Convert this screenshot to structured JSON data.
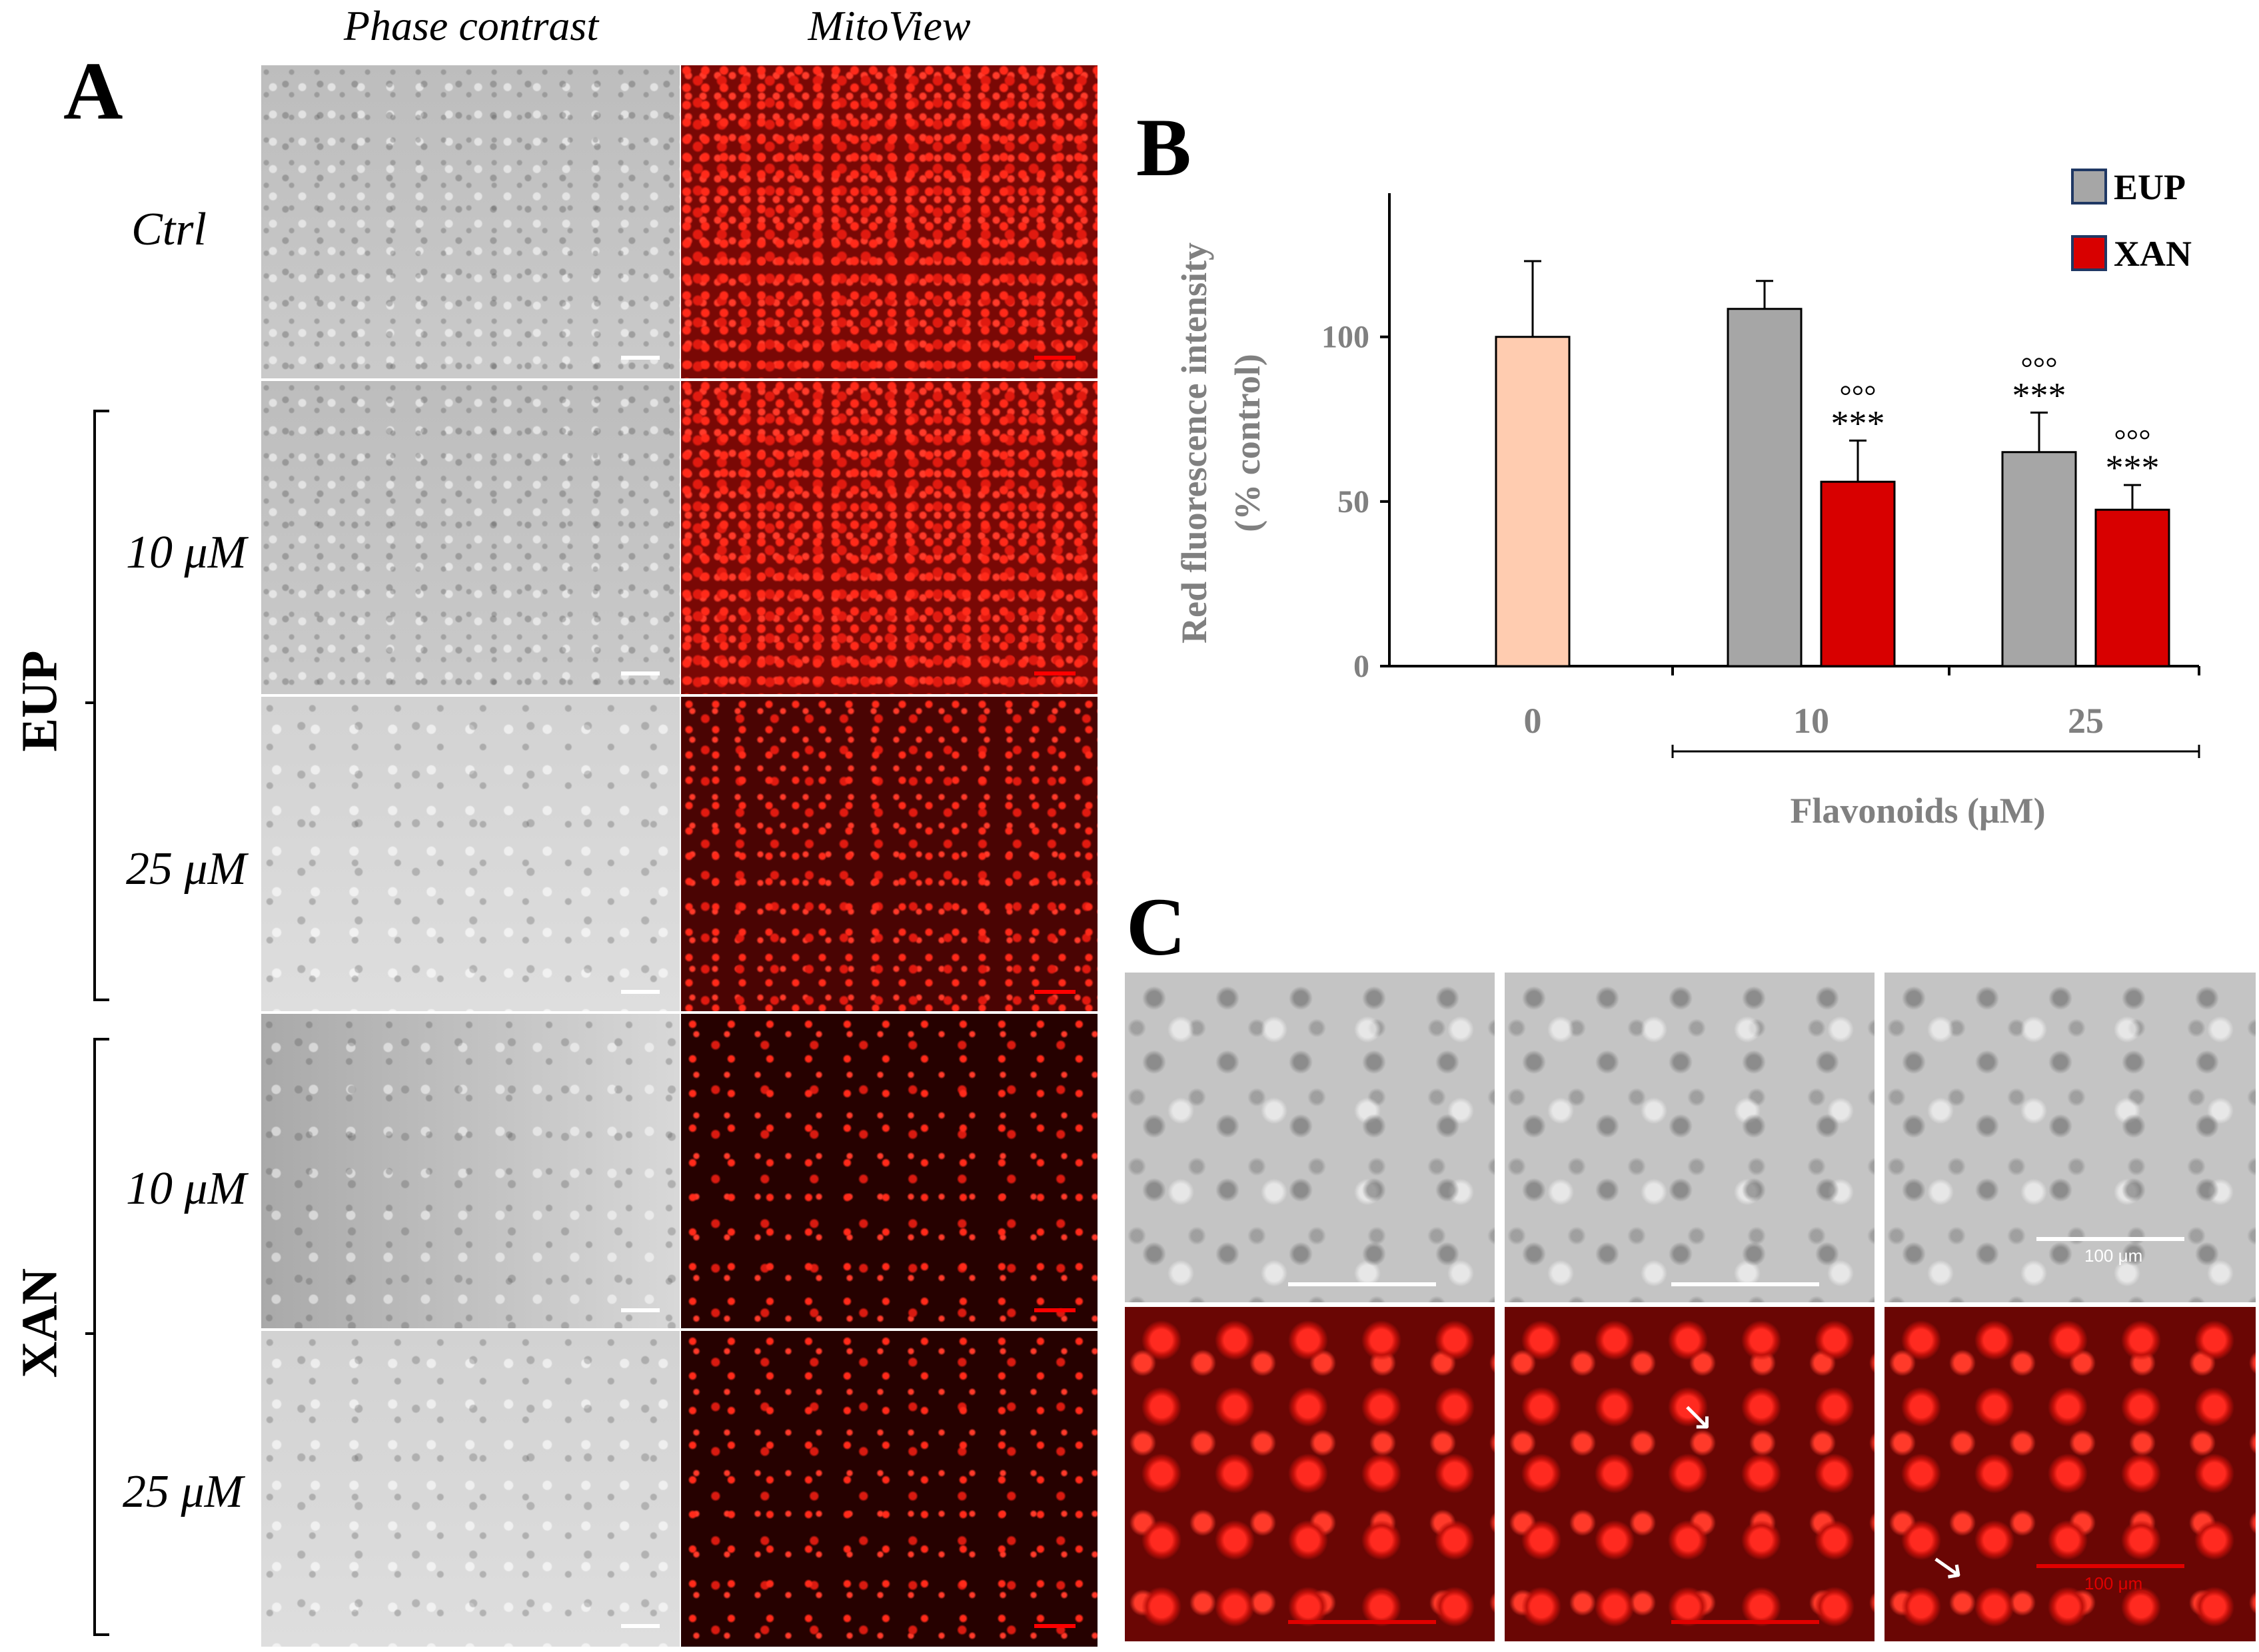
{
  "panel_a": {
    "letter": "A",
    "col_phase": "Phase contrast",
    "col_mito": "MitoView",
    "rows": [
      {
        "label": "Ctrl"
      },
      {
        "label": "10 μM"
      },
      {
        "label": "25 μM"
      },
      {
        "label": "10 μM"
      },
      {
        "label": "25 μM"
      }
    ],
    "group_eup": "EUP",
    "group_xan": "XAN"
  },
  "panel_b": {
    "letter": "B",
    "chart_data": {
      "type": "bar",
      "ylabel_line1": "Red fluorescence intensity",
      "ylabel_line2": "(% control)",
      "xlabel": "Flavonoids (μM)",
      "categories": [
        "0",
        "10",
        "25"
      ],
      "ylim": [
        0,
        130
      ],
      "yticks": [
        0,
        50,
        100
      ],
      "series": [
        {
          "name": "EUP",
          "color": "#a6a6a6",
          "values": [
            null,
            108.5,
            65
          ],
          "errors": [
            null,
            8.5,
            12
          ]
        },
        {
          "name": "XAN",
          "color": "#d80000",
          "values": [
            null,
            56,
            47.5
          ],
          "errors": [
            null,
            12.5,
            7.5
          ]
        }
      ],
      "control": {
        "value": 100,
        "error": 23,
        "color": "#ffccb0"
      },
      "annotations": [
        {
          "category": "10",
          "series": "XAN",
          "top": "°°°",
          "bottom": "***"
        },
        {
          "category": "25",
          "series": "EUP",
          "top": "°°°",
          "bottom": "***"
        },
        {
          "category": "25",
          "series": "XAN",
          "top": "°°°",
          "bottom": "***"
        }
      ],
      "legend_position": "top-right"
    }
  },
  "panel_c": {
    "letter": "C",
    "scale_text": "100 μm"
  }
}
